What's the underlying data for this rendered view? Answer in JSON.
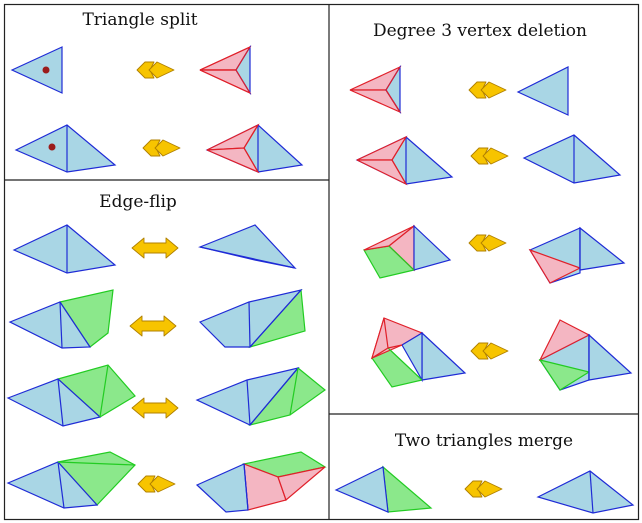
{
  "panels": {
    "triangle_split": {
      "title": "Triangle split"
    },
    "edge_flip": {
      "title": "Edge-flip"
    },
    "degree3_deletion": {
      "title": "Degree 3 vertex deletion"
    },
    "two_triangles_merge": {
      "title": "Two triangles merge"
    }
  },
  "colors": {
    "blue_fill": "#a9d6e5",
    "blue_stroke": "#1f2bd6",
    "red_fill": "#f4b6c2",
    "red_stroke": "#e0202a",
    "green_fill": "#8be88b",
    "green_stroke": "#22cc22",
    "arrow_fill": "#f7c400",
    "arrow_stroke": "#b08000",
    "dot": "#9b1c1c",
    "border": "#222222"
  },
  "icons": {
    "one_way_arrow": "double-chevron-right-arrow",
    "two_way_arrow": "bidirectional-arrow",
    "inserted_vertex": "dot"
  }
}
